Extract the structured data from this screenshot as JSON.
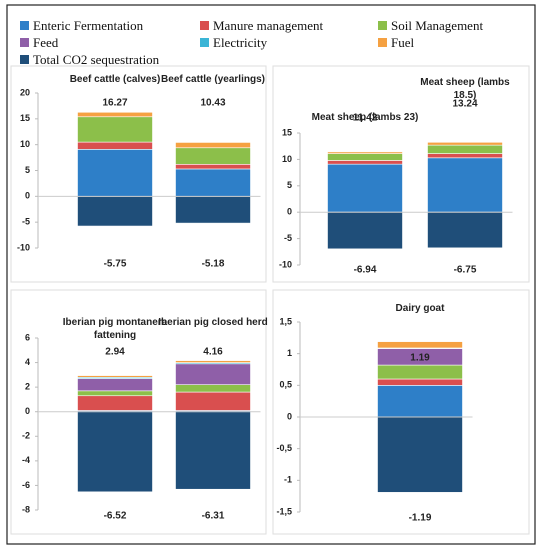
{
  "chart_data": [
    {
      "type": "stacked_bar",
      "categories": [
        "Beef cattle (calves)",
        "Beef cattle (yearlings)"
      ],
      "series": [
        {
          "name": "Enteric Fermentation",
          "color": "#2e7fc8",
          "values": [
            9.1,
            5.3
          ]
        },
        {
          "name": "Manure management",
          "color": "#d94f4f",
          "values": [
            1.4,
            0.9
          ]
        },
        {
          "name": "Soil Management",
          "color": "#8cbf4a",
          "values": [
            4.9,
            3.2
          ]
        },
        {
          "name": "Feed",
          "color": "#8f5fa8",
          "values": [
            0,
            0
          ]
        },
        {
          "name": "Electricity",
          "color": "#3bb5d6",
          "values": [
            0,
            0
          ]
        },
        {
          "name": "Fuel",
          "color": "#f5a142",
          "values": [
            0.87,
            1.03
          ]
        },
        {
          "name": "Total CO2 sequestration",
          "color": "#1f4e79",
          "values": [
            -5.75,
            -5.18
          ]
        }
      ],
      "total_labels": [
        16.27,
        10.43
      ],
      "ylim": [
        -10,
        20
      ],
      "yticks": [
        -10,
        -5,
        0,
        5,
        10,
        15,
        20
      ],
      "grid": false
    },
    {
      "type": "stacked_bar",
      "categories": [
        "Meat sheep (lambs 23)",
        "Meat sheep (lambs 18.5)"
      ],
      "series": [
        {
          "name": "Enteric Fermentation",
          "color": "#2e7fc8",
          "values": [
            9.1,
            10.3
          ]
        },
        {
          "name": "Manure management",
          "color": "#d94f4f",
          "values": [
            0.7,
            0.8
          ]
        },
        {
          "name": "Soil Management",
          "color": "#8cbf4a",
          "values": [
            1.3,
            1.6
          ]
        },
        {
          "name": "Feed",
          "color": "#8f5fa8",
          "values": [
            0,
            0
          ]
        },
        {
          "name": "Electricity",
          "color": "#3bb5d6",
          "values": [
            0,
            0
          ]
        },
        {
          "name": "Fuel",
          "color": "#f5a142",
          "values": [
            0.32,
            0.54
          ]
        },
        {
          "name": "Total CO2 sequestration",
          "color": "#1f4e79",
          "values": [
            -6.94,
            -6.75
          ]
        }
      ],
      "total_labels": [
        11.42,
        13.24
      ],
      "ylim": [
        -10,
        15
      ],
      "yticks": [
        -10,
        -5,
        0,
        5,
        10,
        15
      ],
      "grid": false
    },
    {
      "type": "stacked_bar",
      "categories": [
        "Iberian pig montanera fattening",
        "Iberian pig closed herd"
      ],
      "series": [
        {
          "name": "Enteric Fermentation",
          "color": "#2e7fc8",
          "values": [
            0.1,
            0.1
          ]
        },
        {
          "name": "Manure management",
          "color": "#d94f4f",
          "values": [
            1.2,
            1.5
          ]
        },
        {
          "name": "Soil Management",
          "color": "#8cbf4a",
          "values": [
            0.4,
            0.6
          ]
        },
        {
          "name": "Feed",
          "color": "#8f5fa8",
          "values": [
            1.0,
            1.7
          ]
        },
        {
          "name": "Electricity",
          "color": "#3bb5d6",
          "values": [
            0.1,
            0.1
          ]
        },
        {
          "name": "Fuel",
          "color": "#f5a142",
          "values": [
            0.14,
            0.16
          ]
        },
        {
          "name": "Total CO2 sequestration",
          "color": "#1f4e79",
          "values": [
            -6.52,
            -6.31
          ]
        }
      ],
      "total_labels": [
        2.94,
        4.16
      ],
      "ylim": [
        -8,
        6
      ],
      "yticks": [
        -8,
        -6,
        -4,
        -2,
        0,
        2,
        4,
        6
      ],
      "grid": false
    },
    {
      "type": "stacked_bar",
      "categories": [
        "Dairy goat"
      ],
      "series": [
        {
          "name": "Enteric Fermentation",
          "color": "#2e7fc8",
          "values": [
            0.5
          ]
        },
        {
          "name": "Manure management",
          "color": "#d94f4f",
          "values": [
            0.1
          ]
        },
        {
          "name": "Soil Management",
          "color": "#8cbf4a",
          "values": [
            0.22
          ]
        },
        {
          "name": "Feed",
          "color": "#8f5fa8",
          "values": [
            0.26
          ]
        },
        {
          "name": "Electricity",
          "color": "#3bb5d6",
          "values": [
            0.01
          ]
        },
        {
          "name": "Fuel",
          "color": "#f5a142",
          "values": [
            0.1
          ]
        },
        {
          "name": "Total CO2 sequestration",
          "color": "#1f4e79",
          "values": [
            -1.19
          ]
        }
      ],
      "total_labels": [
        1.19
      ],
      "ylim": [
        -1.5,
        1.5
      ],
      "yticks": [
        {
          "value": -1.5,
          "label": "-1,5"
        },
        -1,
        {
          "value": -0.5,
          "label": "-0,5"
        },
        0,
        {
          "value": 0.5,
          "label": "0,5"
        },
        1,
        {
          "value": 1.5,
          "label": "1,5"
        }
      ],
      "grid": false
    }
  ]
}
